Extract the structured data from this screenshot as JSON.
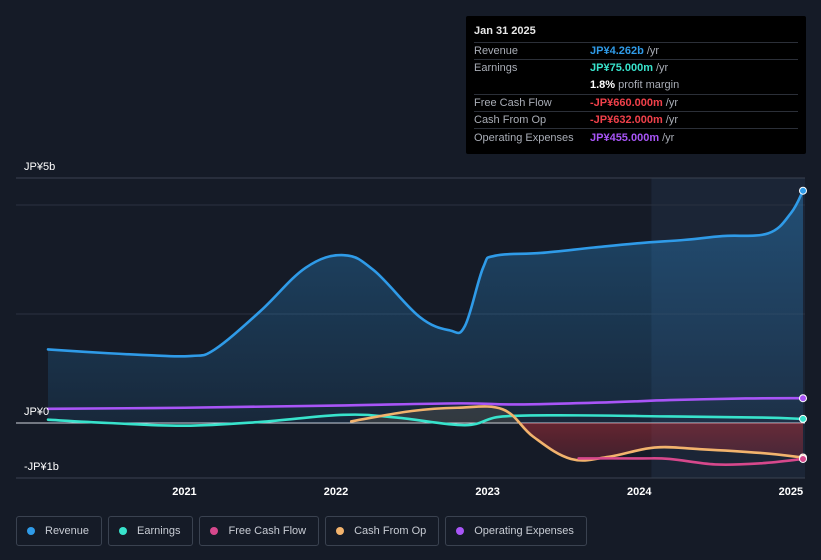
{
  "tooltip": {
    "date": "Jan 31 2025",
    "rows": [
      {
        "label": "Revenue",
        "value": "JP¥4.262b",
        "unit": "/yr",
        "color": "#2f9be8"
      },
      {
        "label": "Earnings",
        "value": "JP¥75.000m",
        "unit": "/yr",
        "color": "#38e3cc"
      },
      {
        "label": "",
        "value": "1.8%",
        "unit": "profit margin",
        "color": "#ffffff"
      },
      {
        "label": "Free Cash Flow",
        "value": "-JP¥660.000m",
        "unit": "/yr",
        "color": "#f0404a"
      },
      {
        "label": "Cash From Op",
        "value": "-JP¥632.000m",
        "unit": "/yr",
        "color": "#f0404a"
      },
      {
        "label": "Operating Expenses",
        "value": "JP¥455.000m",
        "unit": "/yr",
        "color": "#a855f7"
      }
    ]
  },
  "legend": [
    {
      "label": "Revenue",
      "color": "#2f9be8"
    },
    {
      "label": "Earnings",
      "color": "#38e3cc"
    },
    {
      "label": "Free Cash Flow",
      "color": "#d6488c"
    },
    {
      "label": "Cash From Op",
      "color": "#f2b36d"
    },
    {
      "label": "Operating Expenses",
      "color": "#a855f7"
    }
  ],
  "chart_data": {
    "type": "area",
    "x_ticks": [
      "2021",
      "2022",
      "2023",
      "2024",
      "2025"
    ],
    "y_ticks": [
      "JP¥5b",
      "JP¥0",
      "-JP¥1b"
    ],
    "ylim": [
      -1.0,
      5.0
    ],
    "xlim": [
      2020.1,
      2025.08
    ],
    "highlight_start": 2024.08,
    "series": [
      {
        "name": "Revenue",
        "color": "#2f9be8",
        "fill": true,
        "points": [
          [
            2020.1,
            1.35
          ],
          [
            2020.5,
            1.28
          ],
          [
            2020.8,
            1.24
          ],
          [
            2021.05,
            1.23
          ],
          [
            2021.2,
            1.35
          ],
          [
            2021.5,
            2.05
          ],
          [
            2021.8,
            2.85
          ],
          [
            2022.05,
            3.08
          ],
          [
            2022.25,
            2.8
          ],
          [
            2022.55,
            1.95
          ],
          [
            2022.75,
            1.7
          ],
          [
            2022.85,
            1.78
          ],
          [
            2022.97,
            2.85
          ],
          [
            2023.05,
            3.07
          ],
          [
            2023.35,
            3.12
          ],
          [
            2023.7,
            3.22
          ],
          [
            2024.0,
            3.3
          ],
          [
            2024.3,
            3.36
          ],
          [
            2024.55,
            3.43
          ],
          [
            2024.85,
            3.48
          ],
          [
            2025.0,
            3.85
          ],
          [
            2025.08,
            4.262
          ]
        ]
      },
      {
        "name": "Earnings",
        "color": "#38e3cc",
        "fill": false,
        "points": [
          [
            2020.1,
            0.06
          ],
          [
            2020.5,
            0.0
          ],
          [
            2021.0,
            -0.05
          ],
          [
            2021.5,
            0.02
          ],
          [
            2022.05,
            0.15
          ],
          [
            2022.4,
            0.1
          ],
          [
            2022.85,
            -0.04
          ],
          [
            2023.1,
            0.12
          ],
          [
            2023.6,
            0.14
          ],
          [
            2024.2,
            0.12
          ],
          [
            2024.8,
            0.1
          ],
          [
            2025.08,
            0.075
          ]
        ]
      },
      {
        "name": "Operating Expenses",
        "color": "#a855f7",
        "fill": false,
        "points": [
          [
            2020.1,
            0.26
          ],
          [
            2021.0,
            0.28
          ],
          [
            2022.0,
            0.32
          ],
          [
            2022.8,
            0.36
          ],
          [
            2023.2,
            0.34
          ],
          [
            2023.8,
            0.38
          ],
          [
            2024.2,
            0.42
          ],
          [
            2024.7,
            0.45
          ],
          [
            2025.08,
            0.455
          ]
        ]
      },
      {
        "name": "Cash From Op",
        "color": "#f2b36d",
        "fill": false,
        "points": [
          [
            2022.1,
            0.03
          ],
          [
            2022.5,
            0.22
          ],
          [
            2022.8,
            0.28
          ],
          [
            2023.1,
            0.25
          ],
          [
            2023.3,
            -0.25
          ],
          [
            2023.55,
            -0.66
          ],
          [
            2023.8,
            -0.62
          ],
          [
            2024.1,
            -0.45
          ],
          [
            2024.4,
            -0.48
          ],
          [
            2024.8,
            -0.55
          ],
          [
            2025.08,
            -0.632
          ]
        ]
      },
      {
        "name": "Free Cash Flow",
        "color": "#d6488c",
        "fill": false,
        "points": [
          [
            2023.6,
            -0.65
          ],
          [
            2024.0,
            -0.65
          ],
          [
            2024.2,
            -0.66
          ],
          [
            2024.5,
            -0.76
          ],
          [
            2024.8,
            -0.74
          ],
          [
            2025.08,
            -0.66
          ]
        ]
      }
    ]
  }
}
